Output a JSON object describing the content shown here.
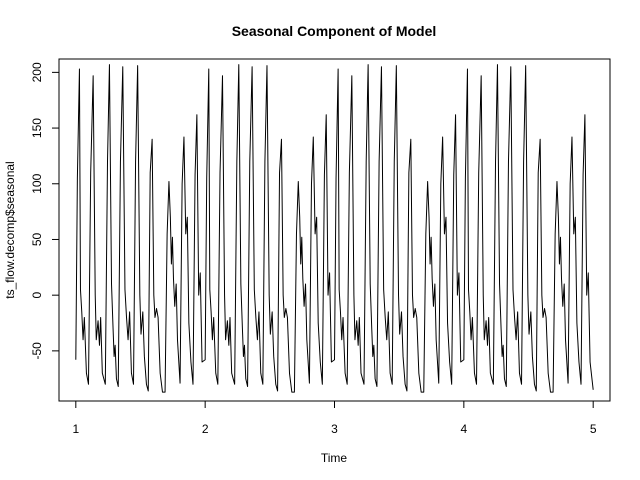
{
  "chart_data": {
    "type": "line",
    "title": "Seasonal Component of Model",
    "xlabel": "Time",
    "ylabel": "ts_flow.decomp$seasonal",
    "xlim": [
      0.87,
      5.13
    ],
    "ylim": [
      -95,
      212
    ],
    "x_ticks": [
      1,
      2,
      3,
      4,
      5
    ],
    "y_ticks": [
      -50,
      0,
      50,
      100,
      150,
      200
    ],
    "grid": false,
    "legend": "none",
    "series_color": "#000000",
    "period": {
      "start": 1,
      "end": 2,
      "points": [
        [
          1.0,
          -58
        ],
        [
          1.012,
          105
        ],
        [
          1.028,
          203
        ],
        [
          1.036,
          5
        ],
        [
          1.046,
          -15
        ],
        [
          1.056,
          -40
        ],
        [
          1.066,
          -20
        ],
        [
          1.082,
          -70
        ],
        [
          1.098,
          -80
        ],
        [
          1.115,
          110
        ],
        [
          1.134,
          197
        ],
        [
          1.15,
          0
        ],
        [
          1.158,
          -40
        ],
        [
          1.172,
          -23
        ],
        [
          1.183,
          -45
        ],
        [
          1.192,
          -20
        ],
        [
          1.205,
          -70
        ],
        [
          1.228,
          -80
        ],
        [
          1.245,
          120
        ],
        [
          1.26,
          207
        ],
        [
          1.276,
          10
        ],
        [
          1.288,
          -30
        ],
        [
          1.296,
          -55
        ],
        [
          1.304,
          -45
        ],
        [
          1.314,
          -75
        ],
        [
          1.328,
          -82
        ],
        [
          1.345,
          120
        ],
        [
          1.363,
          205
        ],
        [
          1.38,
          5
        ],
        [
          1.392,
          -20
        ],
        [
          1.404,
          -40
        ],
        [
          1.416,
          -15
        ],
        [
          1.43,
          -70
        ],
        [
          1.446,
          -80
        ],
        [
          1.462,
          120
        ],
        [
          1.478,
          206
        ],
        [
          1.495,
          0
        ],
        [
          1.504,
          -35
        ],
        [
          1.518,
          -15
        ],
        [
          1.53,
          -55
        ],
        [
          1.546,
          -80
        ],
        [
          1.56,
          -86
        ],
        [
          1.575,
          110
        ],
        [
          1.59,
          140
        ],
        [
          1.603,
          0
        ],
        [
          1.612,
          -20
        ],
        [
          1.624,
          -12
        ],
        [
          1.636,
          -20
        ],
        [
          1.652,
          -70
        ],
        [
          1.67,
          -87
        ],
        [
          1.69,
          -87
        ],
        [
          1.706,
          55
        ],
        [
          1.72,
          102
        ],
        [
          1.731,
          70
        ],
        [
          1.739,
          28
        ],
        [
          1.747,
          52
        ],
        [
          1.755,
          15
        ],
        [
          1.765,
          -10
        ],
        [
          1.776,
          10
        ],
        [
          1.786,
          -40
        ],
        [
          1.806,
          -79
        ],
        [
          1.822,
          100
        ],
        [
          1.836,
          142
        ],
        [
          1.85,
          55
        ],
        [
          1.862,
          70
        ],
        [
          1.874,
          -25
        ],
        [
          1.89,
          -60
        ],
        [
          1.906,
          -80
        ],
        [
          1.922,
          108
        ],
        [
          1.936,
          162
        ],
        [
          1.95,
          0
        ],
        [
          1.962,
          20
        ],
        [
          1.976,
          -60
        ],
        [
          2.0,
          -58
        ]
      ],
      "segment_end_value": -85
    }
  }
}
